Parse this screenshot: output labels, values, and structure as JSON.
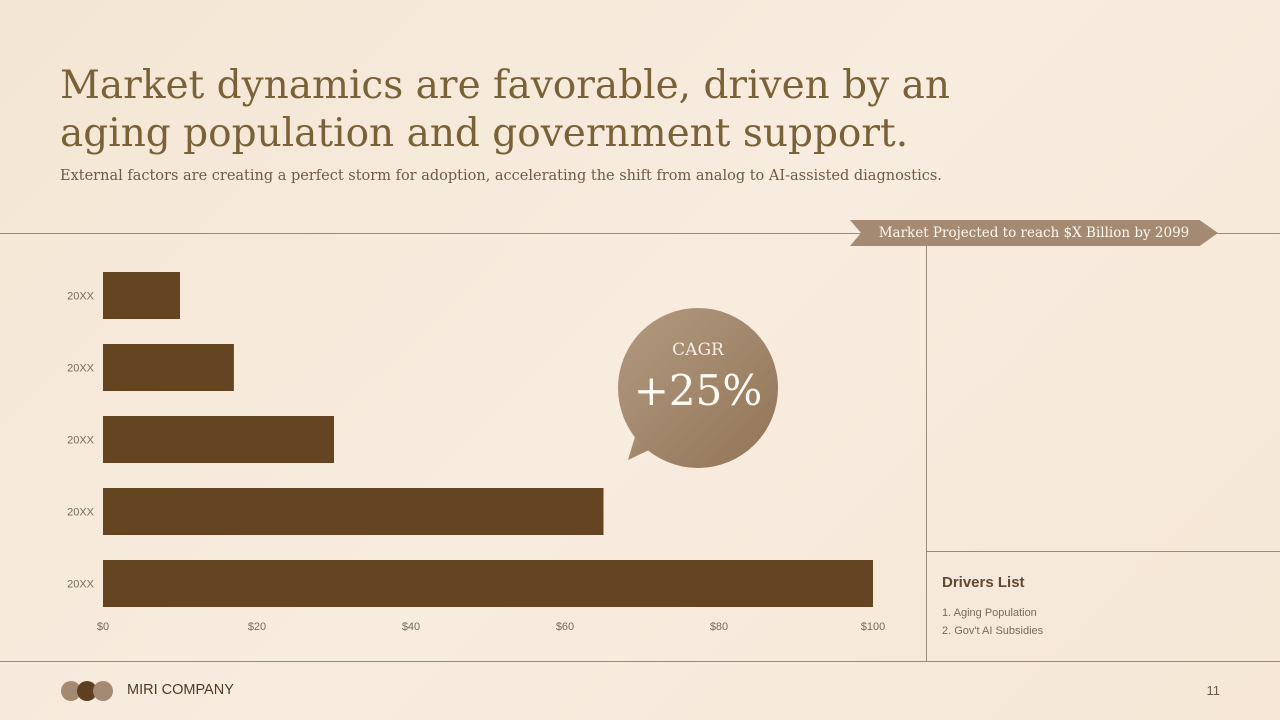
{
  "slide": {
    "title": "Market dynamics are favorable, driven by an aging population and government support.",
    "subtitle": "External factors are creating a perfect storm for adoption, accelerating the shift from analog to AI-assisted diagnostics.",
    "banner": "Market Projected to reach $X Billion by 2099",
    "cagr_label": "CAGR",
    "cagr_value": "+25%",
    "drivers_title": "Drivers List",
    "drivers": [
      "1. Aging Population",
      "2. Gov't AI Subsidies"
    ],
    "company": "MIRI COMPANY",
    "page_number": "11"
  },
  "colors": {
    "bar": "#654521",
    "accent": "#a48a72",
    "background": "#f6e8d8"
  },
  "chart_data": {
    "type": "bar",
    "orientation": "horizontal",
    "categories": [
      "20XX",
      "20XX",
      "20XX",
      "20XX",
      "20XX"
    ],
    "values": [
      10,
      17,
      30,
      65,
      100
    ],
    "x_ticks": [
      "$0",
      "$20",
      "$40",
      "$60",
      "$80",
      "$100"
    ],
    "xlim": [
      0,
      100
    ],
    "title": "",
    "xlabel": "",
    "ylabel": "",
    "grid": false,
    "legend": "none"
  }
}
